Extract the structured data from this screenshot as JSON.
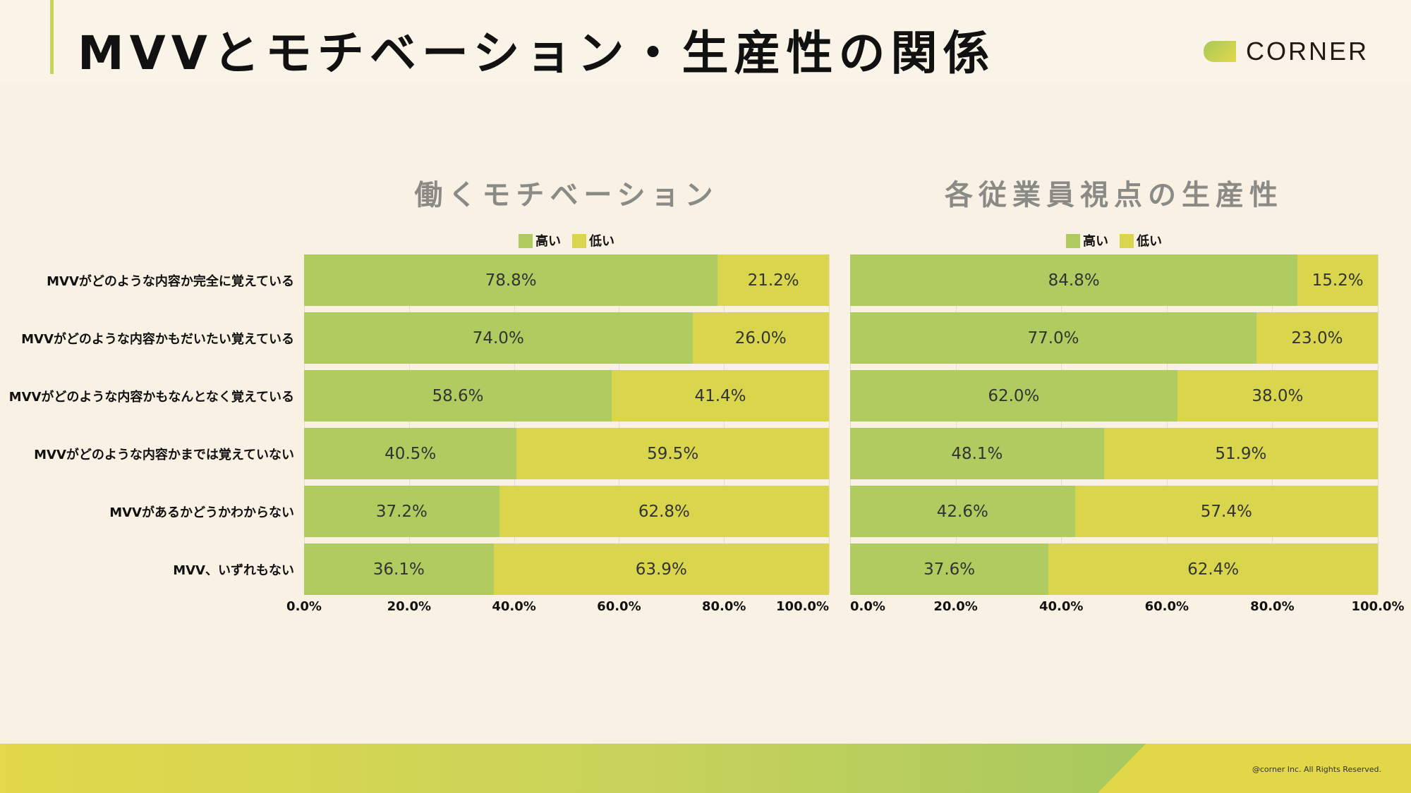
{
  "header": {
    "title": "MVVとモチベーション・生産性の関係",
    "logo_text": "CORNER"
  },
  "footer": {
    "copyright": "@corner Inc. All Rights Reserved."
  },
  "colors": {
    "high": "#b0cb60",
    "low": "#d9d54c"
  },
  "chart_data": [
    {
      "type": "bar",
      "stacked": true,
      "orientation": "horizontal",
      "title": "働くモチベーション",
      "categories": [
        "MVVがどのような内容か完全に覚えている",
        "MVVがどのような内容かもだいたい覚えている",
        "MVVがどのような内容かもなんとなく覚えている",
        "MVVがどのような内容かまでは覚えていない",
        "MVVがあるかどうかわからない",
        "MVV、いずれもない"
      ],
      "series": [
        {
          "name": "高い",
          "values": [
            78.8,
            74.0,
            58.6,
            40.5,
            37.2,
            36.1
          ]
        },
        {
          "name": "低い",
          "values": [
            21.2,
            26.0,
            41.4,
            59.5,
            62.8,
            63.9
          ]
        }
      ],
      "xlim": [
        0,
        100
      ],
      "xticks": [
        "0.0%",
        "20.0%",
        "40.0%",
        "60.0%",
        "80.0%",
        "100.0%"
      ],
      "legend": "top-center"
    },
    {
      "type": "bar",
      "stacked": true,
      "orientation": "horizontal",
      "title": "各従業員視点の生産性",
      "categories": [
        "MVVがどのような内容か完全に覚えている",
        "MVVがどのような内容かもだいたい覚えている",
        "MVVがどのような内容かもなんとなく覚えている",
        "MVVがどのような内容かまでは覚えていない",
        "MVVがあるかどうかわからない",
        "MVV、いずれもない"
      ],
      "series": [
        {
          "name": "高い",
          "values": [
            84.8,
            77.0,
            62.0,
            48.1,
            42.6,
            37.6
          ]
        },
        {
          "name": "低い",
          "values": [
            15.2,
            23.0,
            38.0,
            51.9,
            57.4,
            62.4
          ]
        }
      ],
      "xlim": [
        0,
        100
      ],
      "xticks": [
        "0.0%",
        "20.0%",
        "40.0%",
        "60.0%",
        "80.0%",
        "100.0%"
      ],
      "legend": "top-center"
    }
  ]
}
